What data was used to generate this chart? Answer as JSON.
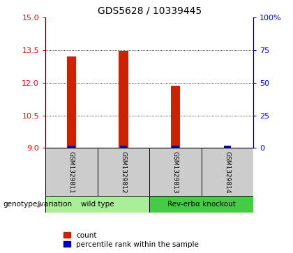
{
  "title": "GDS5628 / 10339445",
  "samples": [
    "GSM1329811",
    "GSM1329812",
    "GSM1329813",
    "GSM1329814"
  ],
  "count_values": [
    13.2,
    13.48,
    11.88,
    9.0
  ],
  "percentile_values": [
    0.5,
    0.5,
    0.5,
    0.5
  ],
  "ylim_left": [
    9,
    15
  ],
  "ylim_right": [
    0,
    100
  ],
  "yticks_left": [
    9,
    10.5,
    12,
    13.5,
    15
  ],
  "yticks_right": [
    0,
    25,
    50,
    75,
    100
  ],
  "ytick_labels_right": [
    "0",
    "25",
    "50",
    "75",
    "100%"
  ],
  "bar_color": "#cc2200",
  "percentile_color": "#0000bb",
  "groups": [
    {
      "label": "wild type",
      "indices": [
        0,
        1
      ],
      "color": "#aaee99"
    },
    {
      "label": "Rev-erbα knockout",
      "indices": [
        2,
        3
      ],
      "color": "#44cc44"
    }
  ],
  "group_row_label": "genotype/variation",
  "legend_count_label": "count",
  "legend_percentile_label": "percentile rank within the sample",
  "bar_width": 0.18,
  "sample_cell_color": "#cccccc",
  "plot_bg_color": "#ffffff",
  "fig_bg_color": "#ffffff"
}
